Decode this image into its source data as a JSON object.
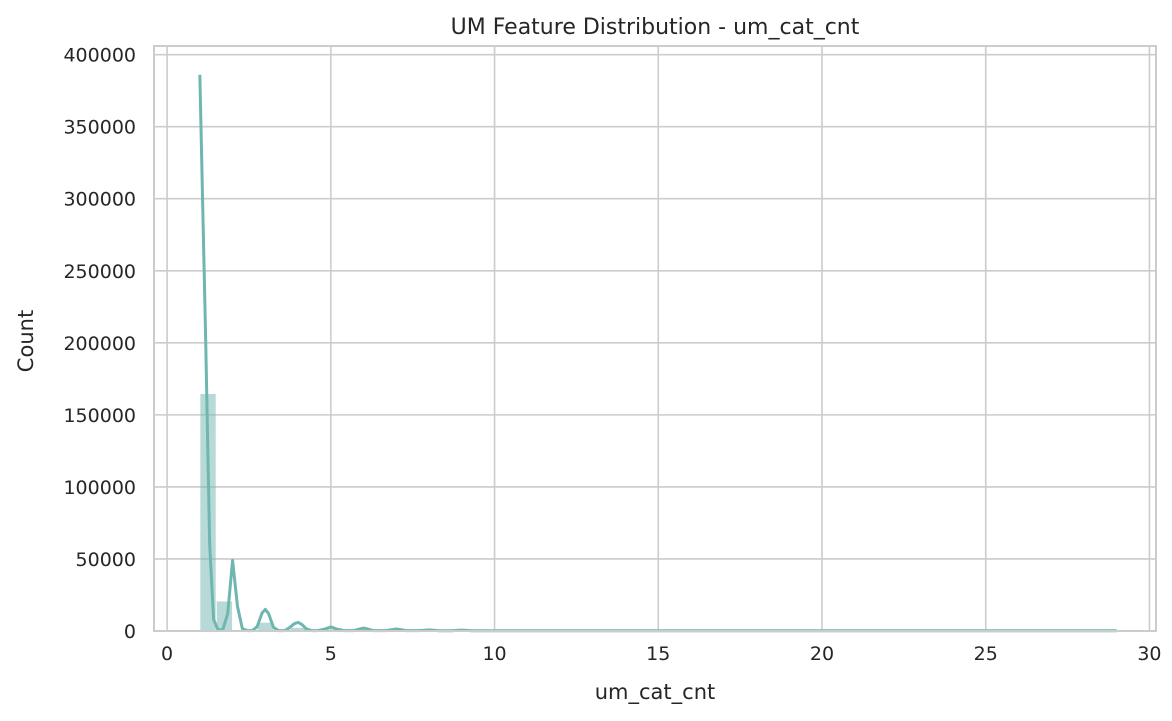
{
  "chart_data": {
    "type": "bar",
    "title": "UM Feature Distribution - um_cat_cnt",
    "xlabel": "um_cat_cnt",
    "ylabel": "Count",
    "xlim": [
      -0.4,
      30.2
    ],
    "ylim": [
      0,
      406000
    ],
    "xticks": [
      0,
      5,
      10,
      15,
      20,
      25,
      30
    ],
    "yticks": [
      0,
      50000,
      100000,
      150000,
      200000,
      250000,
      300000,
      350000,
      400000
    ],
    "grid": true,
    "color": "#6fb6b0",
    "histogram": {
      "bin_width": 0.5,
      "bins": [
        {
          "x0": 1.0,
          "x1": 1.5,
          "count": 164500
        },
        {
          "x0": 1.5,
          "x1": 2.0,
          "count": 20500
        },
        {
          "x0": 2.75,
          "x1": 3.25,
          "count": 5800
        },
        {
          "x0": 3.75,
          "x1": 4.25,
          "count": 2200
        },
        {
          "x0": 4.75,
          "x1": 5.25,
          "count": 1000
        },
        {
          "x0": 5.75,
          "x1": 6.25,
          "count": 600
        },
        {
          "x0": 6.75,
          "x1": 7.25,
          "count": 400
        },
        {
          "x0": 7.75,
          "x1": 8.25,
          "count": 250
        },
        {
          "x0": 8.75,
          "x1": 9.25,
          "count": 150
        }
      ]
    },
    "kde": {
      "x": [
        1.0,
        1.18,
        1.3,
        1.42,
        1.55,
        1.7,
        1.85,
        2.0,
        2.15,
        2.3,
        2.45,
        2.6,
        2.75,
        2.9,
        3.0,
        3.1,
        3.25,
        3.4,
        3.6,
        3.75,
        3.88,
        4.0,
        4.12,
        4.25,
        4.4,
        4.6,
        4.8,
        5.0,
        5.2,
        5.4,
        5.7,
        5.85,
        6.0,
        6.15,
        6.3,
        6.7,
        6.85,
        7.0,
        7.15,
        7.3,
        7.7,
        7.85,
        8.0,
        8.15,
        8.3,
        8.7,
        8.85,
        9.0,
        9.15,
        9.3,
        10.0,
        11.0,
        12.0,
        13.0,
        14.0,
        16.0,
        20.0,
        25.0,
        29.0
      ],
      "y": [
        386000,
        200000,
        60000,
        8000,
        1000,
        800,
        12000,
        49000,
        17000,
        1500,
        300,
        300,
        3000,
        12500,
        15000,
        12000,
        2500,
        300,
        300,
        2500,
        5000,
        6000,
        4500,
        1500,
        300,
        300,
        1200,
        2800,
        1200,
        300,
        300,
        1200,
        2000,
        1200,
        300,
        300,
        900,
        1400,
        900,
        300,
        300,
        500,
        800,
        500,
        200,
        200,
        400,
        600,
        400,
        200,
        200,
        200,
        200,
        200,
        200,
        200,
        200,
        200,
        200
      ]
    }
  }
}
